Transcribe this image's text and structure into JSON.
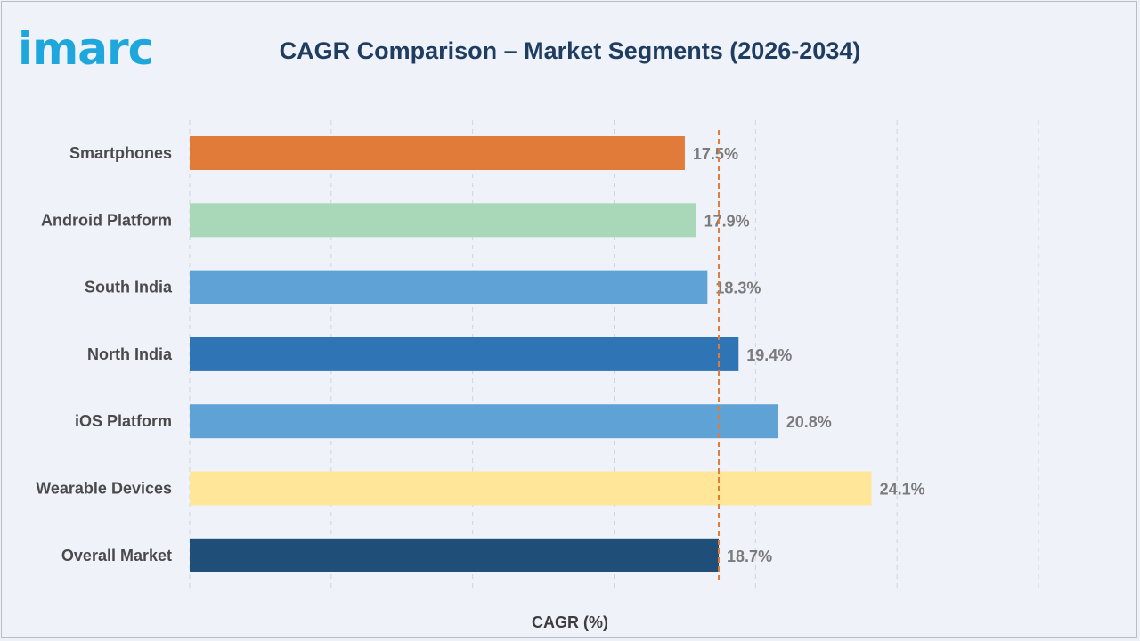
{
  "brand": {
    "logo_text": "imarc"
  },
  "colors": {
    "title": "#1f3d60",
    "logo": "#1ea7dc",
    "reference_line": "#e07b39",
    "grid": "#cfd5dd"
  },
  "chart_data": {
    "type": "bar",
    "orientation": "horizontal",
    "title": "CAGR Comparison – Market Segments (2026-2034)",
    "xlabel": "CAGR (%)",
    "ylabel": "",
    "xlim": [
      0,
      30
    ],
    "grid": true,
    "categories": [
      "Smartphones",
      "Android Platform",
      "South India",
      "North India",
      "iOS Platform",
      "Wearable Devices",
      "Overall Market"
    ],
    "values": [
      17.5,
      17.9,
      18.3,
      19.4,
      20.8,
      24.1,
      18.7
    ],
    "value_labels": [
      "17.5%",
      "17.9%",
      "18.3%",
      "19.4%",
      "20.8%",
      "24.1%",
      "18.7%"
    ],
    "bar_colors": [
      "#e07b39",
      "#a8d8b8",
      "#5fa3d6",
      "#2f74b5",
      "#5fa3d6",
      "#ffe699",
      "#1f4e79"
    ],
    "reference_line": {
      "value": 18.7,
      "style": "dashed",
      "color": "#e07b39"
    }
  }
}
